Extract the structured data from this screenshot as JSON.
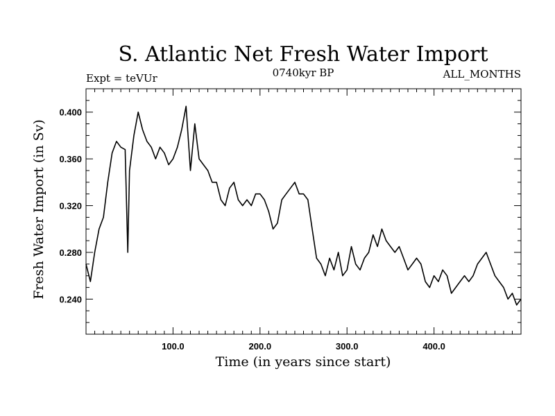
{
  "chart_data": {
    "type": "line",
    "title": "S. Atlantic Net Fresh Water Import",
    "subtitle_left": "Expt = teVUr",
    "subtitle_center": "0740kyr BP",
    "subtitle_right": "ALL_MONTHS",
    "xlabel": "Time (in years since start)",
    "ylabel": "Fresh Water Import (in Sv)",
    "xlim": [
      0,
      500
    ],
    "ylim": [
      0.21,
      0.42
    ],
    "x_ticks": [
      100,
      200,
      300,
      400
    ],
    "x_tick_labels": [
      "100.0",
      "200.0",
      "300.0",
      "400.0"
    ],
    "y_ticks": [
      0.24,
      0.28,
      0.32,
      0.36,
      0.4
    ],
    "y_tick_labels": [
      "0.240",
      "0.280",
      "0.320",
      "0.360",
      "0.400"
    ],
    "grid": false,
    "series": [
      {
        "values_x": [
          0,
          5,
          10,
          15,
          20,
          25,
          30,
          35,
          40,
          45,
          48,
          50,
          55,
          60,
          65,
          70,
          75,
          80,
          85,
          90,
          95,
          100,
          105,
          110,
          115,
          120,
          125,
          130,
          135,
          140,
          145,
          150,
          155,
          160,
          165,
          170,
          175,
          180,
          185,
          190,
          195,
          200,
          205,
          210,
          215,
          220,
          225,
          230,
          235,
          240,
          245,
          250,
          255,
          260,
          265,
          270,
          275,
          280,
          285,
          290,
          295,
          300,
          305,
          310,
          315,
          320,
          325,
          330,
          335,
          340,
          345,
          350,
          355,
          360,
          365,
          370,
          375,
          380,
          385,
          390,
          395,
          400,
          405,
          410,
          415,
          420,
          425,
          430,
          435,
          440,
          445,
          450,
          455,
          460,
          465,
          470,
          475,
          480,
          485,
          490,
          495,
          500
        ],
        "values_y": [
          0.27,
          0.255,
          0.28,
          0.3,
          0.31,
          0.34,
          0.365,
          0.375,
          0.37,
          0.368,
          0.28,
          0.35,
          0.38,
          0.4,
          0.385,
          0.375,
          0.37,
          0.36,
          0.37,
          0.365,
          0.355,
          0.36,
          0.37,
          0.385,
          0.405,
          0.35,
          0.39,
          0.36,
          0.355,
          0.35,
          0.34,
          0.34,
          0.325,
          0.32,
          0.335,
          0.34,
          0.325,
          0.32,
          0.325,
          0.32,
          0.33,
          0.33,
          0.325,
          0.315,
          0.3,
          0.305,
          0.325,
          0.33,
          0.335,
          0.34,
          0.33,
          0.33,
          0.325,
          0.3,
          0.275,
          0.27,
          0.26,
          0.275,
          0.265,
          0.28,
          0.26,
          0.265,
          0.285,
          0.27,
          0.265,
          0.275,
          0.28,
          0.295,
          0.285,
          0.3,
          0.29,
          0.285,
          0.28,
          0.285,
          0.275,
          0.265,
          0.27,
          0.275,
          0.27,
          0.255,
          0.25,
          0.26,
          0.255,
          0.265,
          0.26,
          0.245,
          0.25,
          0.255,
          0.26,
          0.255,
          0.26,
          0.27,
          0.275,
          0.28,
          0.27,
          0.26,
          0.255,
          0.25,
          0.24,
          0.245,
          0.235,
          0.24
        ]
      }
    ]
  }
}
